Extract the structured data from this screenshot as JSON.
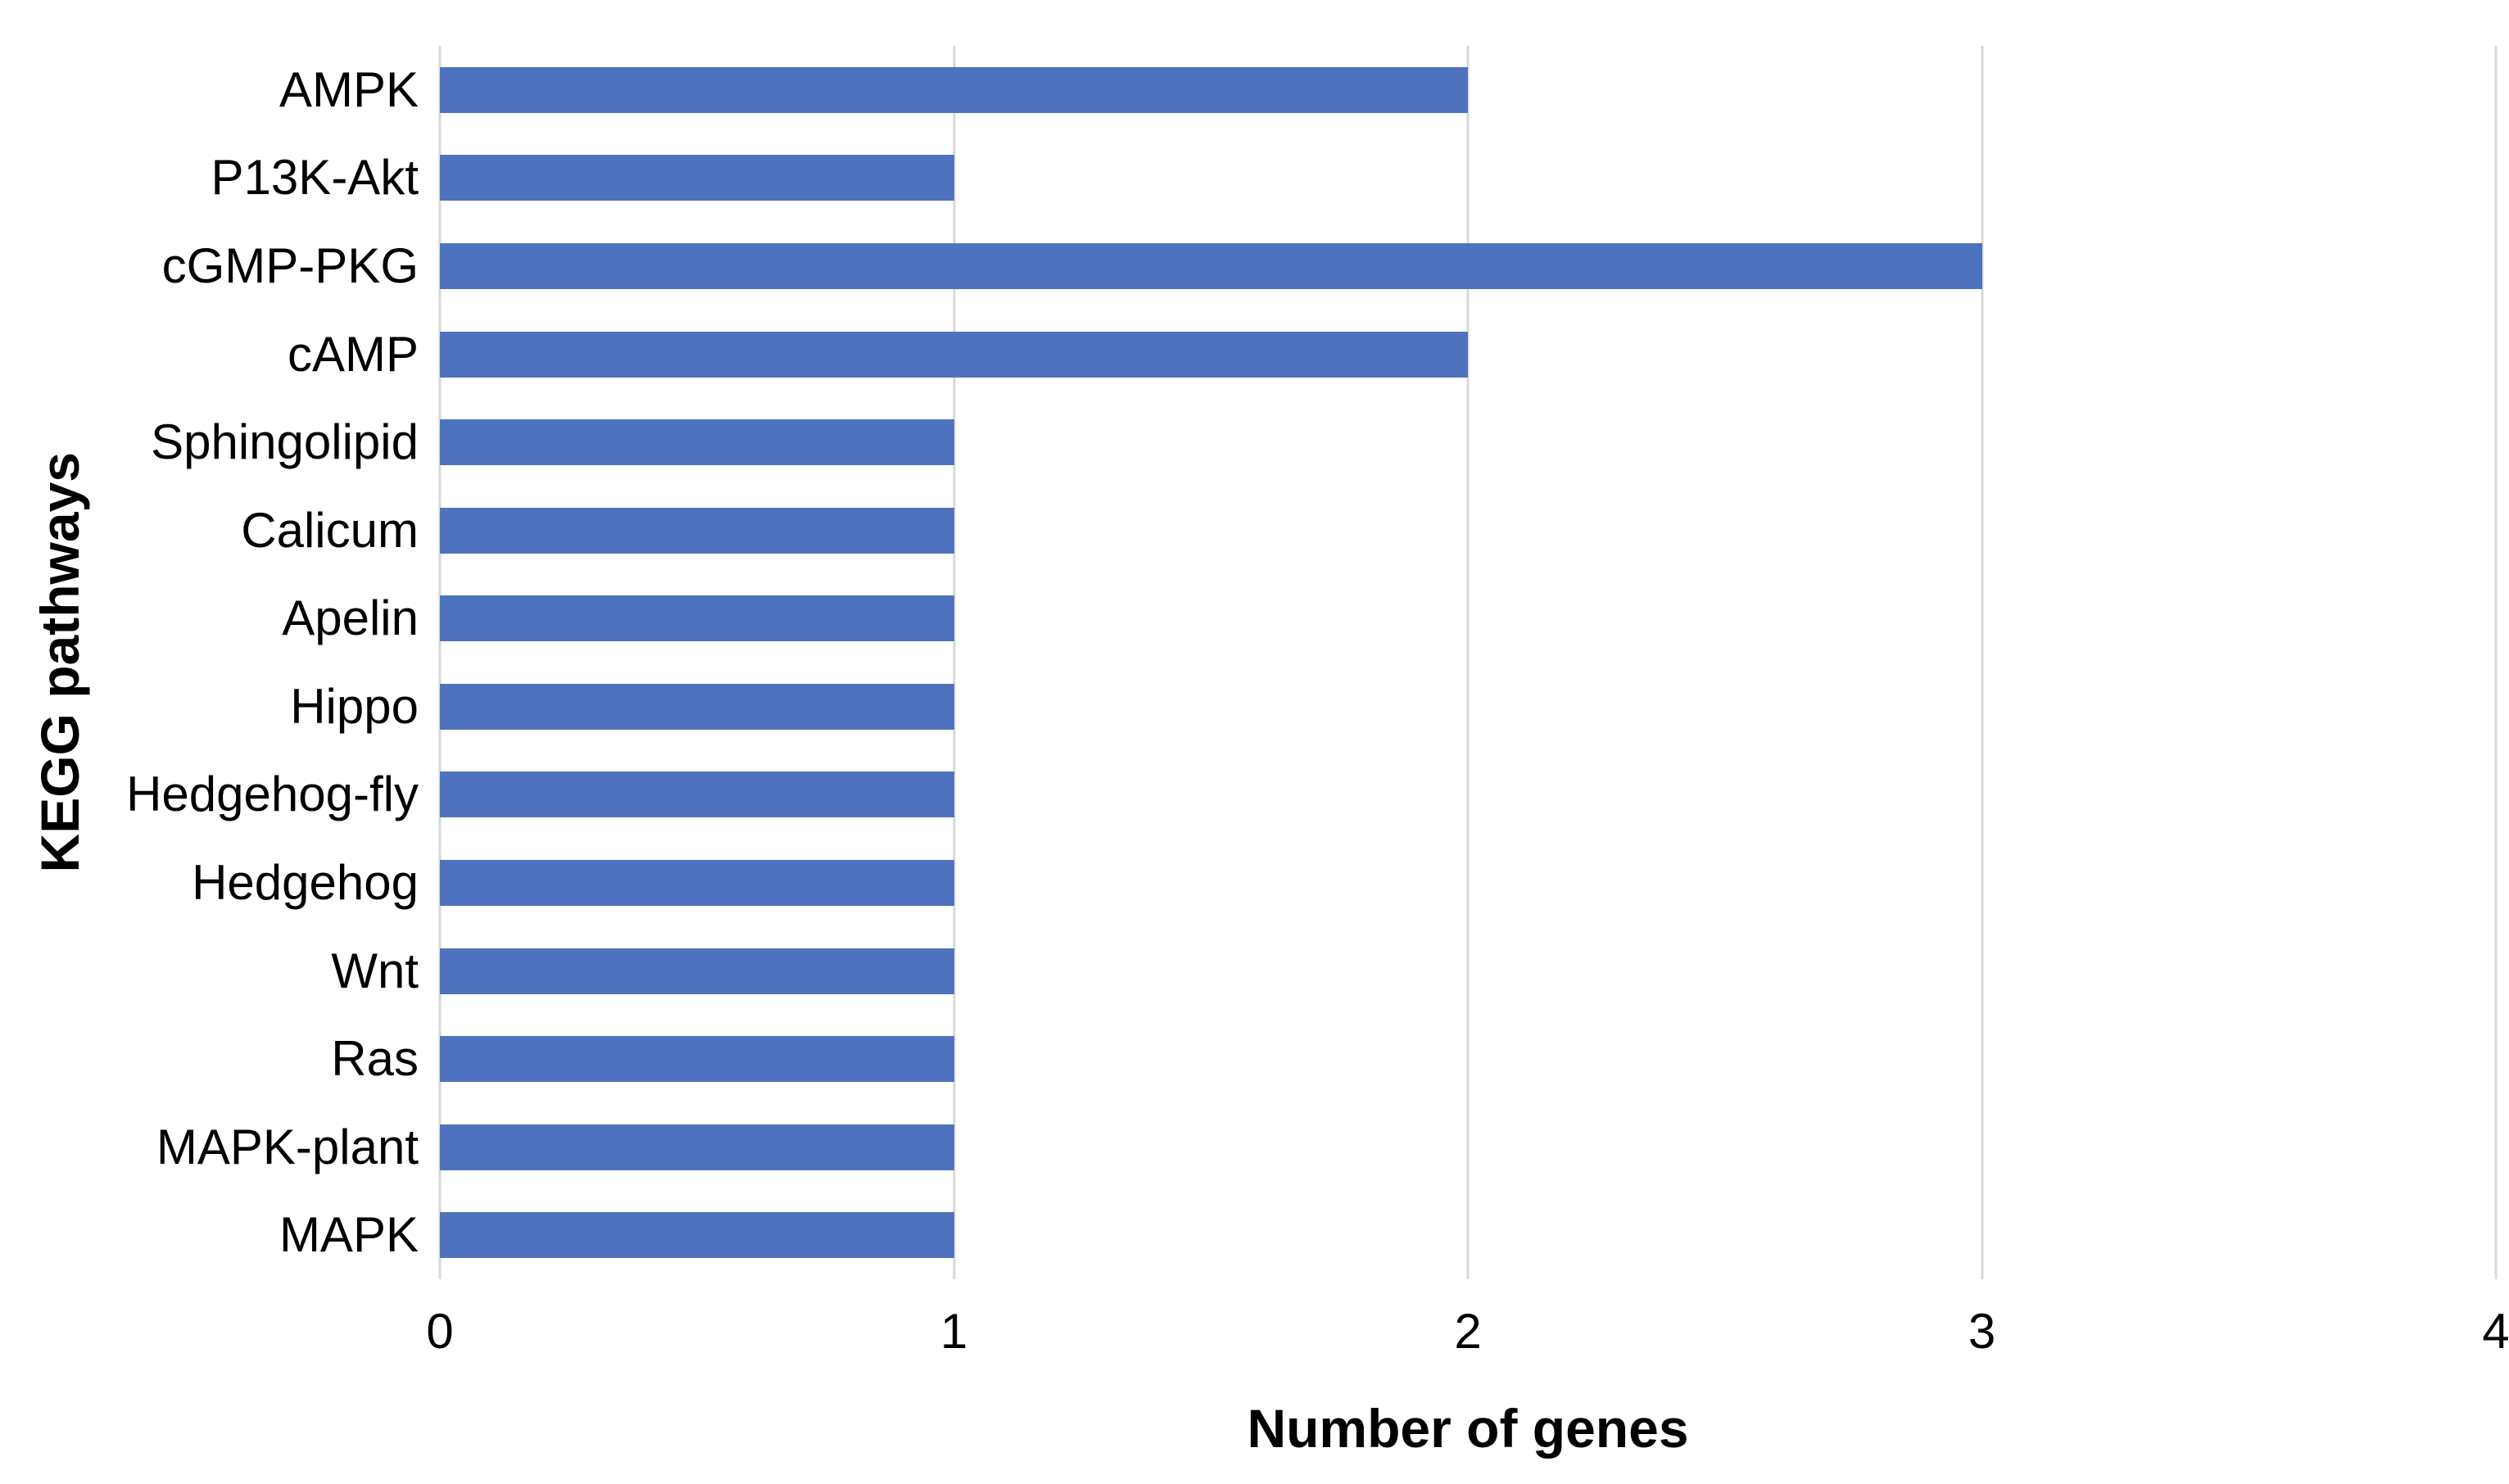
{
  "chart_data": {
    "type": "bar",
    "orientation": "horizontal",
    "title": "",
    "xlabel": "Number of genes",
    "ylabel": "KEGG pathways",
    "categories": [
      "AMPK",
      "P13K-Akt",
      "cGMP-PKG",
      "cAMP",
      "Sphingolipid",
      "Calicum",
      "Apelin",
      "Hippo",
      "Hedgehog-fly",
      "Hedgehog",
      "Wnt",
      "Ras",
      "MAPK-plant",
      "MAPK"
    ],
    "values": [
      2,
      1,
      3,
      2,
      1,
      1,
      1,
      1,
      1,
      1,
      1,
      1,
      1,
      1
    ],
    "xlim": [
      0,
      4
    ],
    "xticks": [
      "0",
      "1",
      "2",
      "3",
      "4"
    ],
    "grid": "vertical major gridlines on, no horizontal gridlines",
    "legend": "none",
    "colors": {
      "bar": "#4F72BE",
      "gridline": "#D9D9D9",
      "text": "#000000",
      "background": "#FFFFFF"
    }
  }
}
